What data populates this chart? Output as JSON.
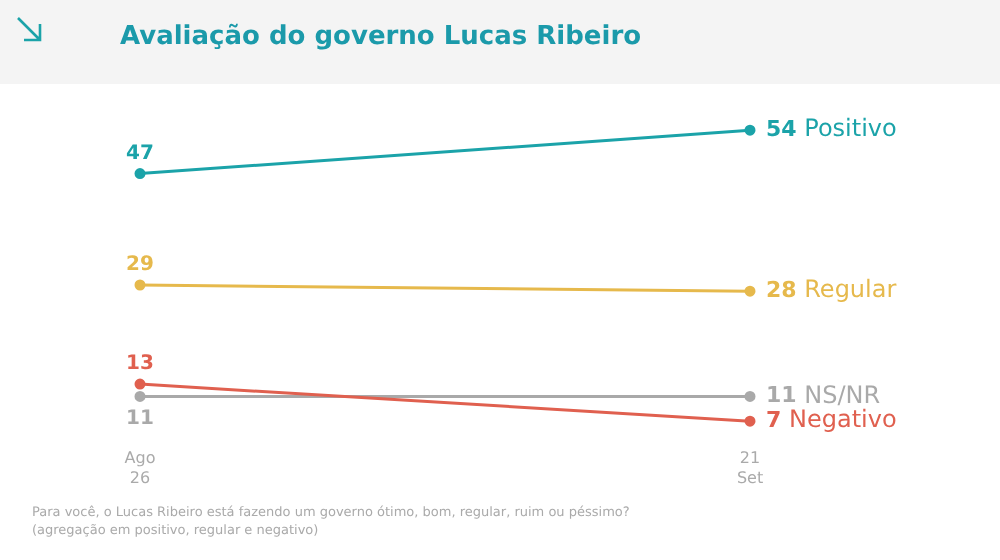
{
  "chart_data": {
    "type": "line",
    "title": "Avaliação do governo Lucas Ribeiro",
    "categories": [
      "Ago 26",
      "21 Set"
    ],
    "series": [
      {
        "name": "Positivo",
        "color": "#1ba3a9",
        "values": [
          47,
          54
        ]
      },
      {
        "name": "Regular",
        "color": "#e6b94c",
        "values": [
          29,
          28
        ]
      },
      {
        "name": "Negativo",
        "color": "#e0604f",
        "values": [
          13,
          7
        ]
      },
      {
        "name": "NS/NR",
        "color": "#a9a9a9",
        "values": [
          11,
          11
        ]
      }
    ],
    "data_labels": true,
    "legend": false,
    "grid": false,
    "marker": "circle",
    "line_style": "solid",
    "tick_labels": "x",
    "annotations": [
      "Para você, o Lucas Ribeiro está fazendo um governo ótimo, bom, regular, ruim ou péssimo? (agregação em positivo, regular e negativo)"
    ]
  }
}
